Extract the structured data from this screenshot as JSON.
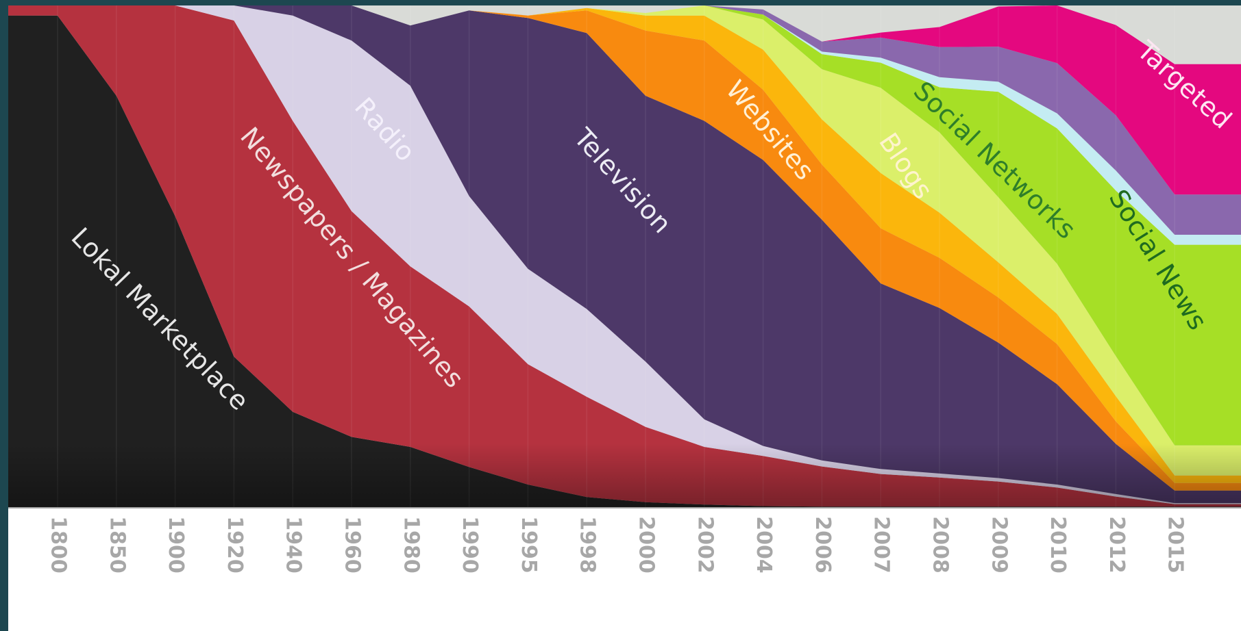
{
  "chart_data": {
    "type": "area",
    "stacking": "100% stacked (shares of total)",
    "title": "",
    "xlabel": "",
    "ylabel": "",
    "ylim": [
      0,
      1
    ],
    "grid": true,
    "x_orientation": "tick labels rotated 90 degrees",
    "x": [
      "1800",
      "1850",
      "1900",
      "1920",
      "1940",
      "1960",
      "1980",
      "1990",
      "1995",
      "1998",
      "2000",
      "2002",
      "2004",
      "2006",
      "2007",
      "2008",
      "2009",
      "2010",
      "2012",
      "2015"
    ],
    "series": [
      {
        "name": "Lokal Marketplace",
        "color": "#202020",
        "label_color": "#e6e6e6",
        "values": [
          0.98,
          0.82,
          0.58,
          0.3,
          0.19,
          0.14,
          0.12,
          0.08,
          0.045,
          0.02,
          0.01,
          0.005,
          0.002,
          0.001,
          0.001,
          0.001,
          0.001,
          0.001,
          0.001,
          0.001
        ]
      },
      {
        "name": "Newspapers / Magazines",
        "color": "#b5323f",
        "label_color": "#f2dede",
        "values": [
          0.02,
          0.18,
          0.42,
          0.67,
          0.58,
          0.45,
          0.36,
          0.32,
          0.24,
          0.2,
          0.15,
          0.115,
          0.1,
          0.08,
          0.065,
          0.058,
          0.05,
          0.038,
          0.02,
          0.005
        ]
      },
      {
        "name": "Radio",
        "color": "#d8d1e6",
        "label_color": "#f4f0fb",
        "values": [
          0.0,
          0.0,
          0.0,
          0.03,
          0.21,
          0.34,
          0.36,
          0.22,
          0.19,
          0.175,
          0.13,
          0.055,
          0.02,
          0.012,
          0.01,
          0.008,
          0.007,
          0.006,
          0.005,
          0.002
        ]
      },
      {
        "name": "Television",
        "color": "#4d3868",
        "label_color": "#ececf4",
        "values": [
          0.0,
          0.0,
          0.0,
          0.0,
          0.02,
          0.07,
          0.12,
          0.37,
          0.5,
          0.55,
          0.53,
          0.595,
          0.57,
          0.48,
          0.37,
          0.33,
          0.27,
          0.2,
          0.1,
          0.025
        ]
      },
      {
        "name": "Websites",
        "color": "#f88a0f",
        "label_color": "#fff0d5",
        "values": [
          0.0,
          0.0,
          0.0,
          0.0,
          0.0,
          0.0,
          0.0,
          0.0,
          0.005,
          0.045,
          0.13,
          0.16,
          0.14,
          0.11,
          0.11,
          0.1,
          0.09,
          0.08,
          0.045,
          0.015
        ]
      },
      {
        "name": "Blogs",
        "color": "#fbb60c",
        "label_color": "#fff4cd",
        "values": [
          0.0,
          0.0,
          0.0,
          0.0,
          0.0,
          0.0,
          0.0,
          0.0,
          0.0,
          0.005,
          0.03,
          0.05,
          0.08,
          0.09,
          0.11,
          0.09,
          0.07,
          0.06,
          0.05,
          0.015
        ]
      },
      {
        "name": "Social Networks",
        "color": "#dbef6a",
        "label_color": "#2e7e2a",
        "values": [
          0.0,
          0.0,
          0.0,
          0.0,
          0.0,
          0.0,
          0.0,
          0.0,
          0.0,
          0.0,
          0.005,
          0.02,
          0.06,
          0.1,
          0.17,
          0.16,
          0.13,
          0.1,
          0.08,
          0.06
        ]
      },
      {
        "name": "Social News",
        "color": "#a6df26",
        "label_color": "#1f6b1f",
        "values": [
          0.0,
          0.0,
          0.0,
          0.0,
          0.0,
          0.0,
          0.0,
          0.0,
          0.0,
          0.0,
          0.0,
          0.0,
          0.01,
          0.03,
          0.05,
          0.09,
          0.21,
          0.27,
          0.33,
          0.4
        ]
      },
      {
        "name": "",
        "color": "#c4ecf2",
        "label_color": "#ffffff",
        "values": [
          0.0,
          0.0,
          0.0,
          0.0,
          0.0,
          0.0,
          0.0,
          0.0,
          0.0,
          0.0,
          0.0,
          0.0,
          0.0,
          0.005,
          0.01,
          0.02,
          0.02,
          0.03,
          0.04,
          0.02
        ]
      },
      {
        "name": "",
        "color": "#8a68ad",
        "label_color": "#ffffff",
        "values": [
          0.0,
          0.0,
          0.0,
          0.0,
          0.0,
          0.0,
          0.0,
          0.0,
          0.0,
          0.0,
          0.0,
          0.0,
          0.01,
          0.02,
          0.04,
          0.06,
          0.07,
          0.1,
          0.11,
          0.08
        ]
      },
      {
        "name": "Targeted",
        "color": "#e4087f",
        "label_color": "#fde6f2",
        "values": [
          0.0,
          0.0,
          0.0,
          0.0,
          0.0,
          0.0,
          0.0,
          0.0,
          0.0,
          0.0,
          0.0,
          0.0,
          0.0,
          0.0,
          0.01,
          0.04,
          0.08,
          0.12,
          0.18,
          0.26
        ]
      }
    ],
    "remainder_color": "#d9dbd7"
  }
}
